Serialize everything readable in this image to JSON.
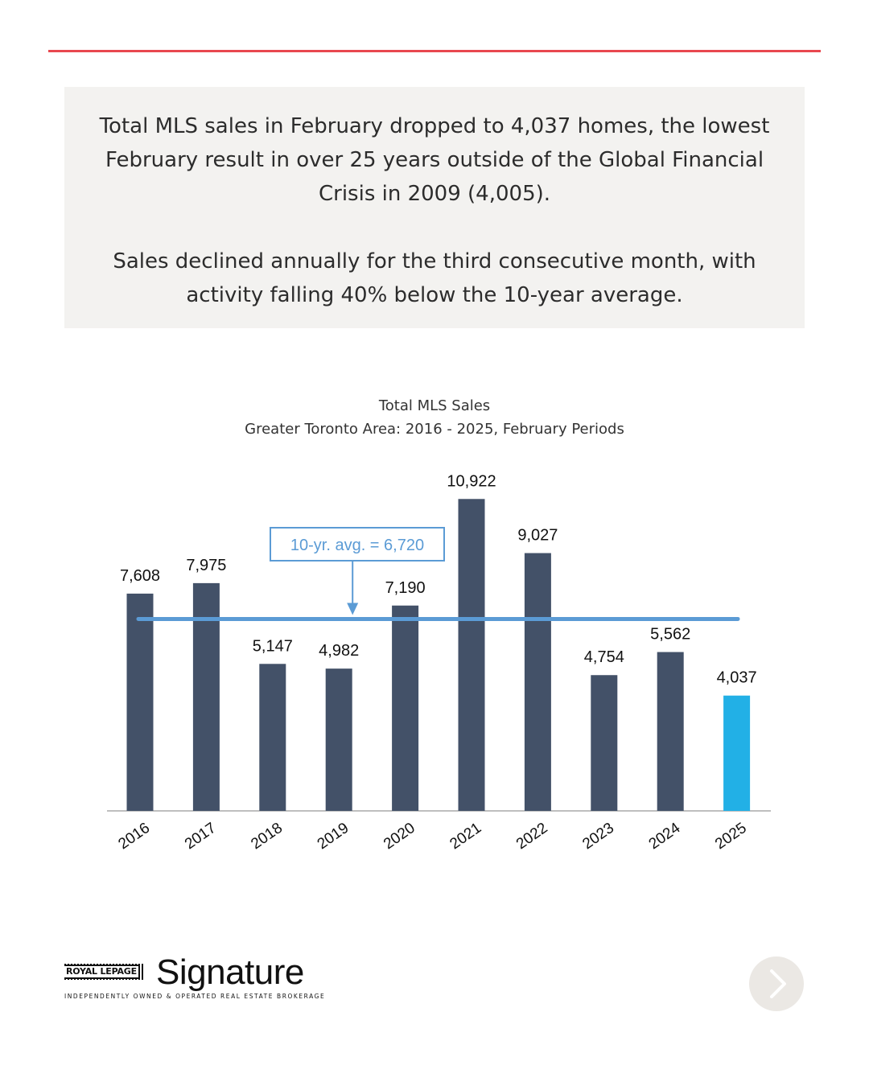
{
  "summary": {
    "paragraph1": "Total MLS sales in February dropped to 4,037 homes, the lowest February result in over 25 years outside of the Global Financial Crisis in 2009 (4,005).",
    "paragraph2": "Sales declined annually for the third consecutive month, with activity falling 40% below the 10-year average."
  },
  "chart_data": {
    "type": "bar",
    "title": "Total MLS Sales",
    "subtitle": "Greater Toronto Area: 2016 - 2025, February Periods",
    "categories": [
      "2016",
      "2017",
      "2018",
      "2019",
      "2020",
      "2021",
      "2022",
      "2023",
      "2024",
      "2025"
    ],
    "values": [
      7608,
      7975,
      5147,
      4982,
      7190,
      10922,
      9027,
      4754,
      5562,
      4037
    ],
    "value_labels": [
      "7,608",
      "7,975",
      "5,147",
      "4,982",
      "7,190",
      "10,922",
      "9,027",
      "4,754",
      "5,562",
      "4,037"
    ],
    "ylim": [
      0,
      11500
    ],
    "bar_color": "#435168",
    "highlight_color": "#22b0e6",
    "highlight_category": "2025",
    "reference_line": {
      "value": 6720,
      "label": "10-yr. avg. = 6,720",
      "color": "#5b9bd5",
      "annotation_category": "2019"
    },
    "grid": false
  },
  "brand": {
    "royal": "ROYAL LEPAGE",
    "name": "Signature",
    "tagline": "INDEPENDENTLY OWNED & OPERATED REAL ESTATE BROKERAGE"
  },
  "colors": {
    "accent_rule": "#e8484f",
    "box_background": "#f3f2f0",
    "next_button": "#ebe8e4"
  },
  "icons": {
    "next": "chevron-right-icon"
  }
}
